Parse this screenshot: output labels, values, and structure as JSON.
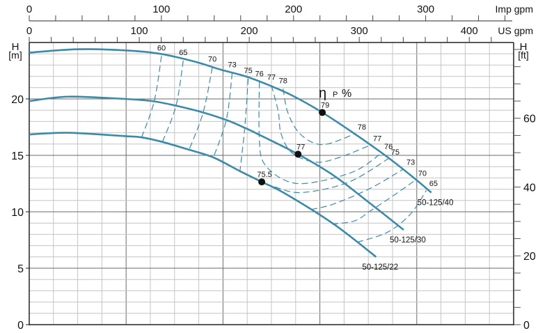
{
  "chart_data": {
    "type": "line",
    "title": "",
    "x_unit_note": "flow in m3/h grid (unlabeled), top axes in Imp gpm and US gpm",
    "xlim": [
      0,
      100
    ],
    "ylim": [
      0,
      25
    ],
    "x_minor_step": 5,
    "x_major_step": 20,
    "y_minor_step": 1,
    "y_major_step": 5,
    "grid": true,
    "top_axes": [
      {
        "label": "Imp gpm",
        "ticks": [
          0,
          100,
          200,
          300
        ],
        "tick_labels": [
          "0",
          "100",
          "200",
          "300"
        ],
        "minor_step": 20,
        "m3h_per_unit": 0.2728
      },
      {
        "label": "US gpm",
        "ticks": [
          0,
          100,
          200,
          300,
          400
        ],
        "tick_labels": [
          "0",
          "100",
          "200",
          "300",
          "400"
        ],
        "minor_step": 20,
        "m3h_per_unit": 0.2271
      }
    ],
    "left_axis": {
      "label": "H",
      "unit": "[m]",
      "ticks": [
        0,
        5,
        10,
        15,
        20
      ],
      "tick_labels": [
        "0",
        "5",
        "10",
        "15",
        "20"
      ]
    },
    "right_axis": {
      "label": "H",
      "unit": "[ft]",
      "ticks": [
        0,
        20,
        40,
        60
      ],
      "tick_labels": [
        "0",
        "20",
        "40",
        "60"
      ],
      "minor_step": 5,
      "m_per_unit": 0.3048
    },
    "series": [
      {
        "name": "50-125/40",
        "x": [
          0,
          10,
          19.8,
          27,
          34.2,
          39.5,
          44.7,
          49.6,
          54.3,
          60.5,
          67.2,
          74.1,
          79.7,
          83.0
        ],
        "y": [
          24.1,
          24.4,
          24.3,
          24.0,
          23.3,
          22.6,
          22.0,
          21.2,
          20.3,
          18.8,
          16.9,
          14.8,
          12.9,
          11.7
        ]
      },
      {
        "name": "50-125/30",
        "x": [
          0,
          8,
          19.8,
          25.5,
          30.3,
          35.9,
          40.9,
          44.7,
          47.6,
          55.5,
          62.9,
          70.5,
          77.3
        ],
        "y": [
          19.8,
          20.2,
          20.0,
          19.8,
          19.4,
          18.8,
          18.1,
          17.4,
          16.8,
          15.1,
          13.2,
          10.7,
          8.4
        ]
      },
      {
        "name": "50-125/22",
        "x": [
          0,
          8,
          19.8,
          23.1,
          27.4,
          33.0,
          38.1,
          43.5,
          48.0,
          52.9,
          62.9,
          71.6
        ],
        "y": [
          16.85,
          17.0,
          16.7,
          16.6,
          16.2,
          15.5,
          14.8,
          13.6,
          12.65,
          11.6,
          8.9,
          6.0
        ]
      }
    ],
    "bep_points": [
      {
        "series": "50-125/40",
        "x": 60.5,
        "y": 18.8,
        "label": "79"
      },
      {
        "series": "50-125/30",
        "x": 55.5,
        "y": 15.1,
        "label": "77"
      },
      {
        "series": "50-125/22",
        "x": 48.0,
        "y": 12.65,
        "label": "75.5"
      }
    ],
    "efficiency_label": {
      "symbol": "η",
      "sub": "P",
      "unit": "%"
    },
    "efficiency_contours": [
      {
        "label": "60",
        "label_at": "start",
        "x": [
          27.3,
          25.8,
          23.2
        ],
        "y": [
          23.8,
          19.8,
          16.6
        ]
      },
      {
        "label": "65",
        "label_at": "start",
        "x": [
          31.8,
          30.3,
          27.5
        ],
        "y": [
          23.4,
          19.4,
          16.2
        ]
      },
      {
        "label": "70",
        "label_at": "start",
        "x": [
          37.8,
          35.9,
          33.0
        ],
        "y": [
          22.8,
          18.8,
          15.5
        ]
      },
      {
        "label": "73",
        "label_at": "start",
        "x": [
          41.9,
          40.7,
          38.0
        ],
        "y": [
          22.3,
          18.2,
          14.8
        ]
      },
      {
        "label": "75",
        "label_at": "start",
        "x": [
          45.2,
          44.5,
          43.5
        ],
        "y": [
          21.8,
          17.5,
          13.6
        ]
      },
      {
        "label": "76",
        "label_at": "both",
        "x": [
          47.5,
          47.5,
          48.6,
          53.3,
          58.6,
          67.2,
          72.7
        ],
        "y": [
          21.5,
          16.4,
          14.2,
          12.7,
          12.6,
          13.6,
          15.2
        ]
      },
      {
        "label": "77",
        "label_at": "both",
        "x": [
          50.0,
          51.4,
          52.0,
          54.3,
          59.1,
          63.9,
          70.4
        ],
        "y": [
          21.2,
          18.9,
          16.9,
          15.2,
          14.4,
          14.8,
          15.9
        ]
      },
      {
        "label": "78",
        "label_at": "both",
        "x": [
          52.4,
          53.3,
          55.3,
          58.2,
          61.5,
          67.2
        ],
        "y": [
          20.9,
          18.9,
          17.2,
          16.2,
          16.0,
          16.9
        ]
      },
      {
        "label": "75",
        "label_at": "end",
        "x": [
          50.7,
          56.2,
          65.8,
          74.1
        ],
        "y": [
          12.2,
          11.7,
          12.6,
          14.7
        ]
      },
      {
        "label": "73",
        "label_at": "end",
        "x": [
          58.2,
          62.9,
          70.5,
          77.3
        ],
        "y": [
          10.2,
          10.7,
          12.1,
          13.8
        ]
      },
      {
        "label": "70",
        "label_at": "end",
        "x": [
          62.5,
          67.2,
          70.5,
          75.4,
          79.7
        ],
        "y": [
          8.9,
          9.2,
          10.1,
          11.5,
          12.8
        ]
      },
      {
        "label": "65",
        "label_at": "end",
        "x": [
          67.7,
          74.0,
          78.7,
          82.0
        ],
        "y": [
          7.3,
          8.2,
          9.8,
          11.9
        ]
      }
    ]
  },
  "colors": {
    "curve": "#3b8aa9",
    "grid_minor": "#c4c4c4",
    "grid_major": "#6a6a6a",
    "axis": "#222222",
    "point": "#111111"
  }
}
